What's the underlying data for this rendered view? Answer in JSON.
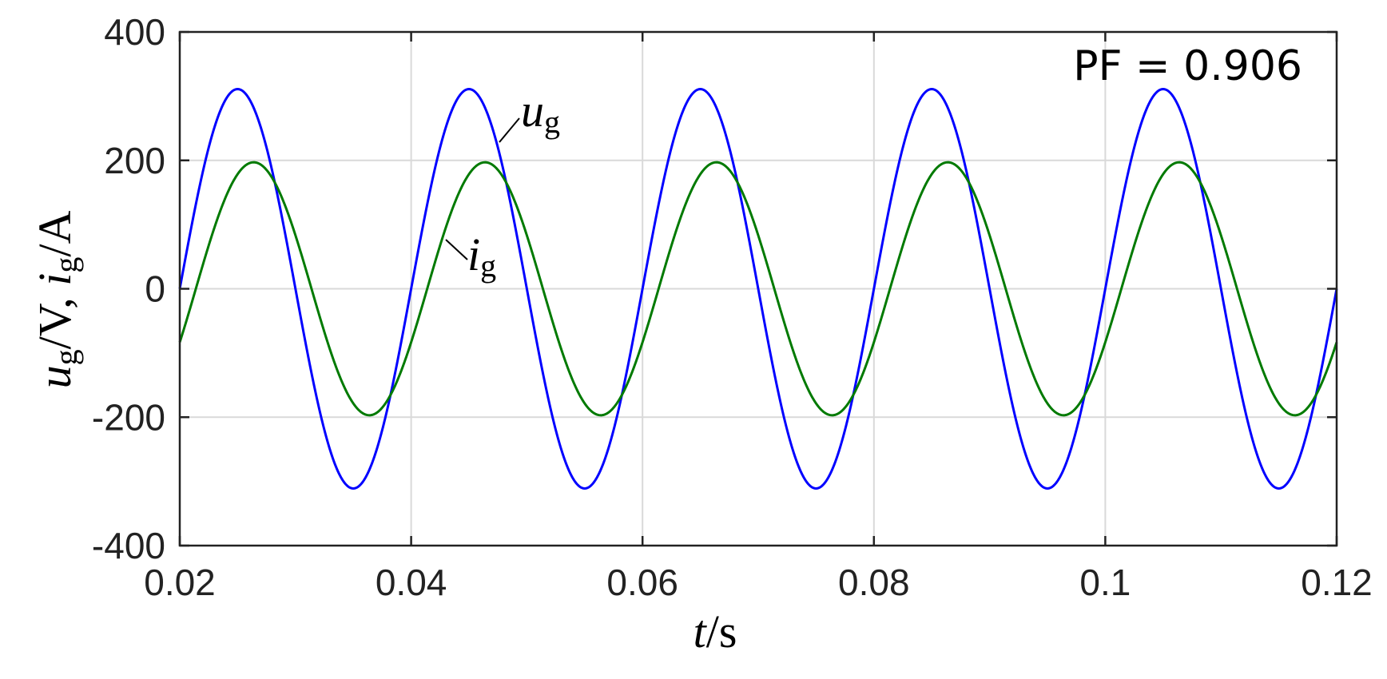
{
  "chart_data": {
    "type": "line",
    "annotation": "PF = 0.906",
    "xlabel": {
      "var": "t",
      "unit": "s"
    },
    "ylabel": {
      "v_var": "u",
      "v_sub": "g",
      "v_unit": "V",
      "sep": ", ",
      "i_var": "i",
      "i_sub": "g",
      "i_unit": "A"
    },
    "xlim": [
      0.02,
      0.12
    ],
    "ylim": [
      -400,
      400
    ],
    "xticks": [
      0.02,
      0.04,
      0.06,
      0.08,
      0.1,
      0.12
    ],
    "xtick_labels": [
      "0.02",
      "0.04",
      "0.06",
      "0.08",
      "0.1",
      "0.12"
    ],
    "yticks": [
      -400,
      -200,
      0,
      200,
      400
    ],
    "ytick_labels": [
      "-400",
      "-200",
      "0",
      "200",
      "400"
    ],
    "grid": true,
    "series": [
      {
        "name": "u_g",
        "label_var": "u",
        "label_sub": "g",
        "color": "#0000ff",
        "amplitude": 311,
        "frequency_hz": 50,
        "phase_deg": 0
      },
      {
        "name": "i_g",
        "label_var": "i",
        "label_sub": "g",
        "color": "#007a00",
        "amplitude": 197,
        "frequency_hz": 50,
        "phase_deg": -25
      }
    ]
  }
}
